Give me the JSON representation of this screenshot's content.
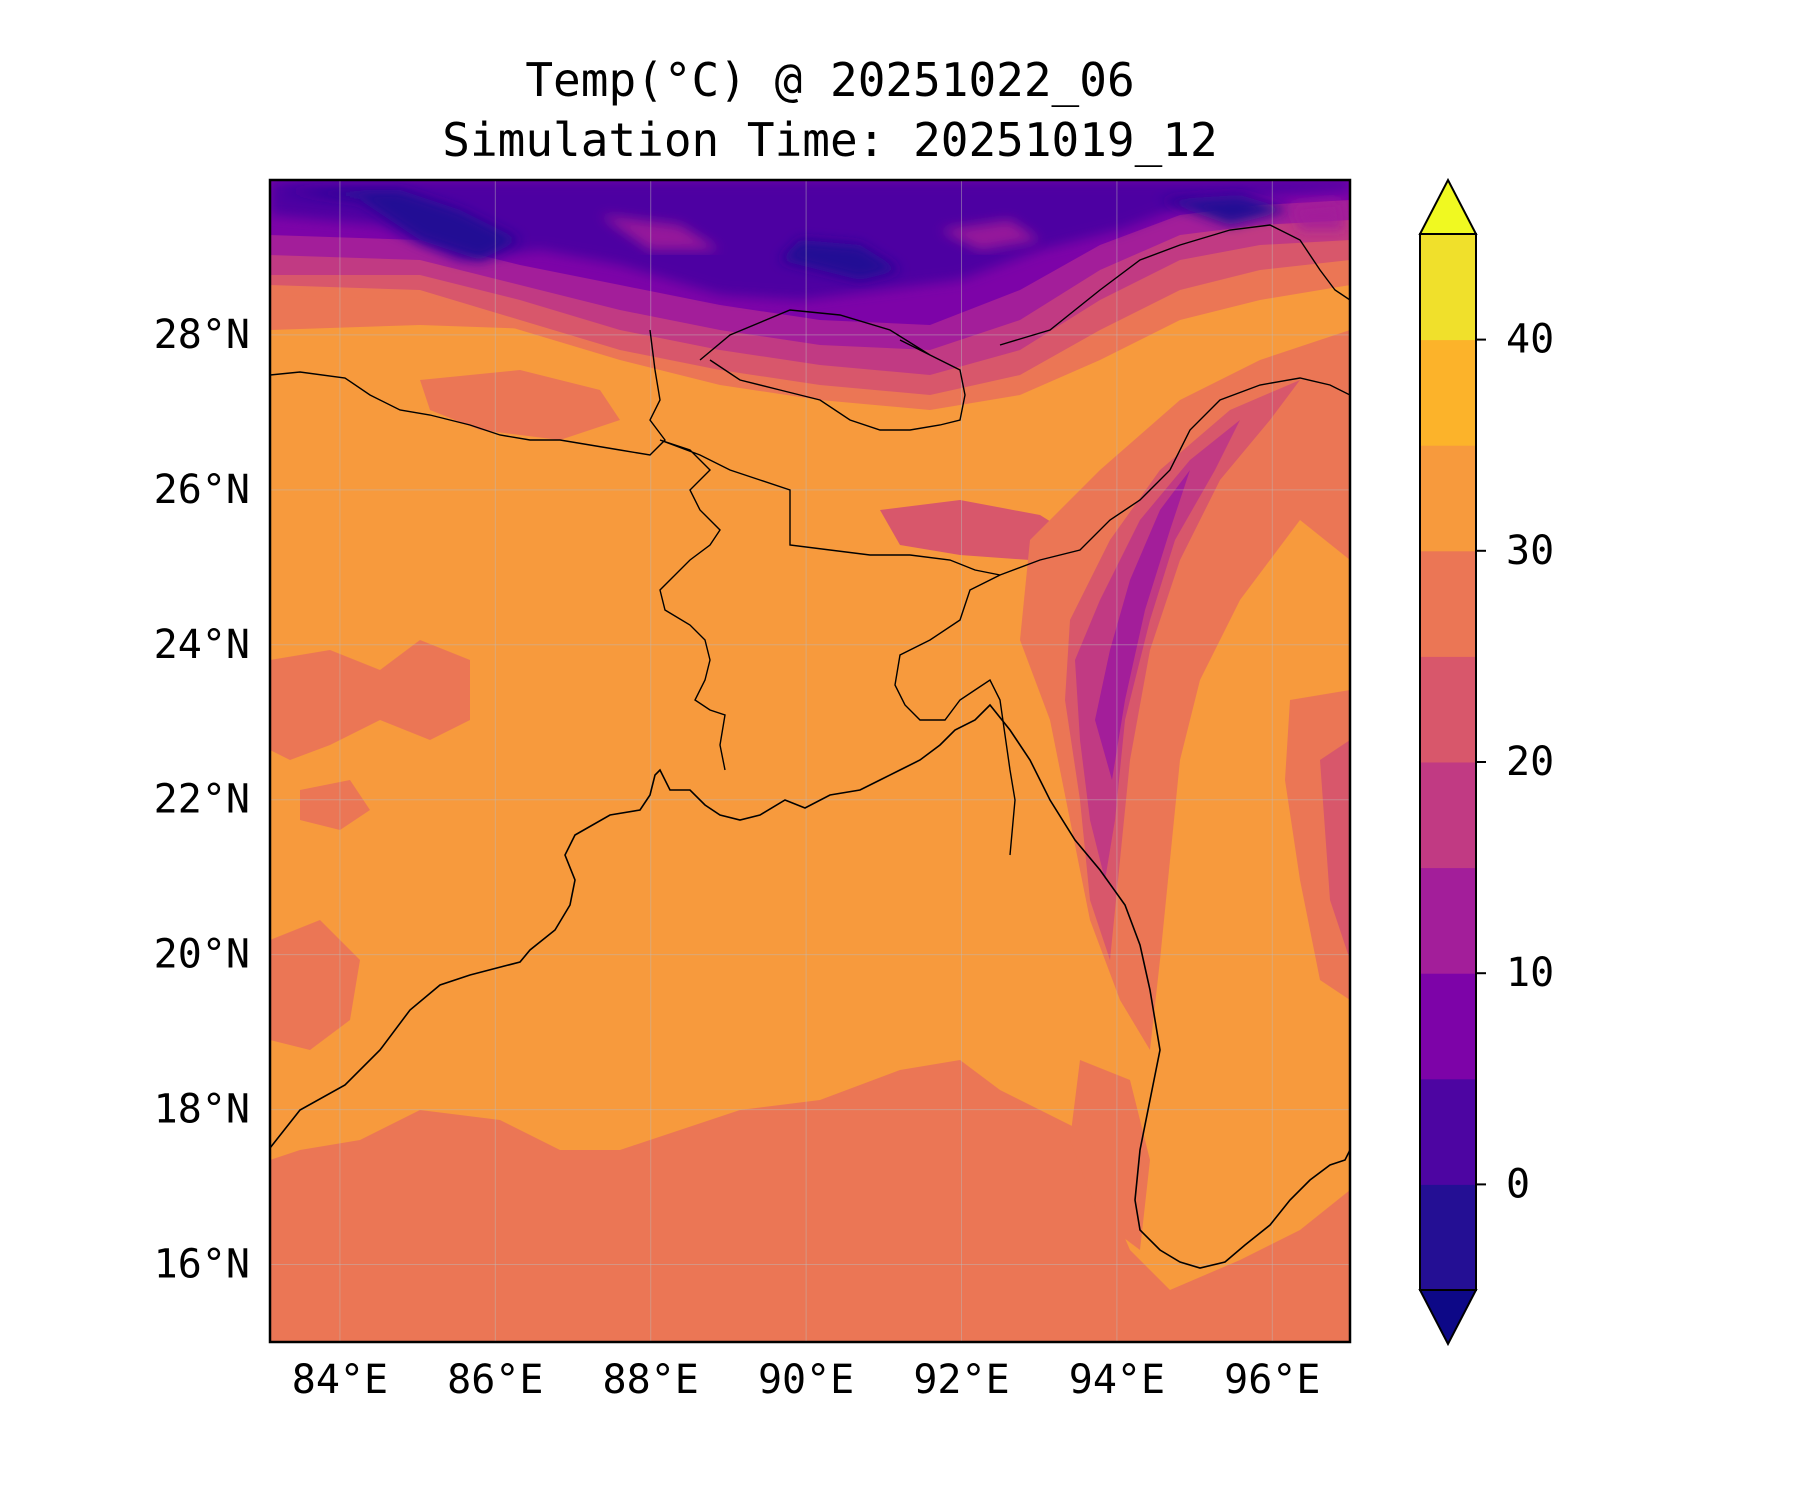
{
  "title": {
    "line1": "Temp(°C) @ 20251022_06",
    "line2": "Simulation Time: 20251019_12"
  },
  "map": {
    "lon_range": [
      83.1,
      97.0
    ],
    "lat_range": [
      15.0,
      30.0
    ],
    "lat_ticks": [
      {
        "value": 16,
        "label": "16°N"
      },
      {
        "value": 18,
        "label": "18°N"
      },
      {
        "value": 20,
        "label": "20°N"
      },
      {
        "value": 22,
        "label": "22°N"
      },
      {
        "value": 24,
        "label": "24°N"
      },
      {
        "value": 26,
        "label": "26°N"
      },
      {
        "value": 28,
        "label": "28°N"
      }
    ],
    "lon_ticks": [
      {
        "value": 84,
        "label": "84°E"
      },
      {
        "value": 86,
        "label": "86°E"
      },
      {
        "value": 88,
        "label": "88°E"
      },
      {
        "value": 90,
        "label": "90°E"
      },
      {
        "value": 92,
        "label": "92°E"
      },
      {
        "value": 94,
        "label": "94°E"
      },
      {
        "value": 96,
        "label": "96°E"
      }
    ],
    "colormap": "plasma",
    "features": [
      "coastlines",
      "country-borders",
      "gridlines"
    ]
  },
  "colorbar": {
    "levels": [
      -5,
      0,
      5,
      10,
      15,
      20,
      25,
      30,
      35,
      40,
      45
    ],
    "colors": [
      "#240f94",
      "#4d05a2",
      "#7d03a8",
      "#a31e9a",
      "#c13a83",
      "#d8576b",
      "#eb7655",
      "#f79a3d",
      "#fcb32a",
      "#f0e02b"
    ],
    "under_color": "#0d0887",
    "over_color": "#f0f921",
    "ticks": [
      {
        "value": 0,
        "label": "0"
      },
      {
        "value": 10,
        "label": "10"
      },
      {
        "value": 20,
        "label": "20"
      },
      {
        "value": 30,
        "label": "30"
      },
      {
        "value": 40,
        "label": "40"
      }
    ]
  }
}
